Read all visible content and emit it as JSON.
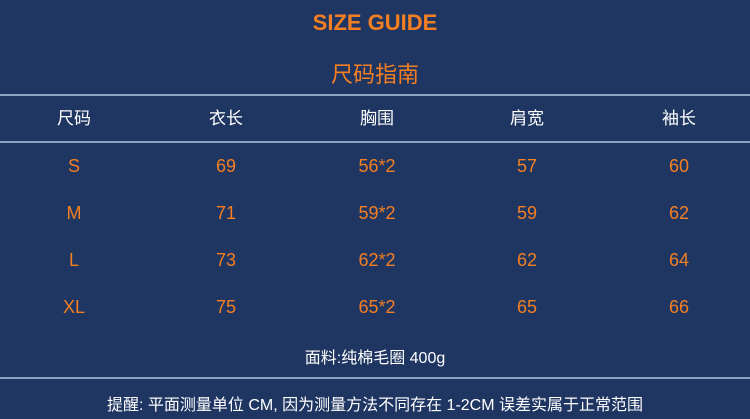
{
  "title_en": "SIZE GUIDE",
  "title_cn": "尺码指南",
  "table": {
    "headers": [
      "尺码",
      "衣长",
      "胸围",
      "肩宽",
      "袖长"
    ],
    "rows": [
      [
        "S",
        "69",
        "56*2",
        "57",
        "60"
      ],
      [
        "M",
        "71",
        "59*2",
        "59",
        "62"
      ],
      [
        "L",
        "73",
        "62*2",
        "62",
        "64"
      ],
      [
        "XL",
        "75",
        "65*2",
        "65",
        "66"
      ]
    ]
  },
  "material": "面料:纯棉毛圈 400g",
  "note": "提醒: 平面测量单位 CM, 因为测量方法不同存在 1-2CM 误差实属于正常范围",
  "colors": {
    "background": "#1f3662",
    "accent": "#f47f22",
    "text": "#ffffff"
  }
}
